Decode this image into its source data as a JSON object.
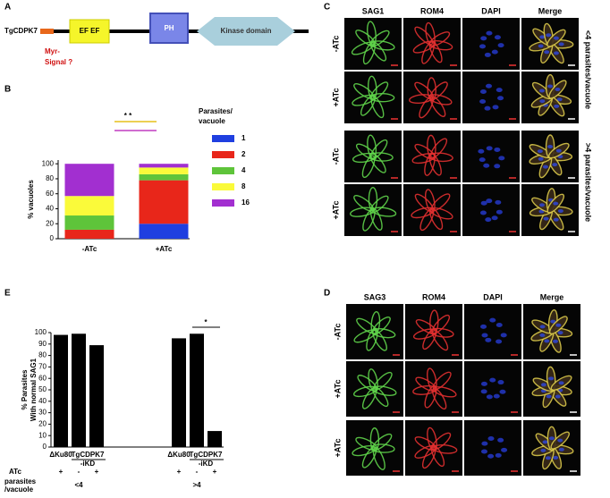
{
  "panel_labels": [
    "A",
    "B",
    "C",
    "D",
    "E"
  ],
  "domain_diagram": {
    "protein": "TgCDPK7",
    "ef": "EF EF",
    "ph": "PH",
    "kinase": "Kinase domain",
    "myr": [
      "Myr-",
      "Signal ?"
    ]
  },
  "chart_data": [
    {
      "type": "stacked-bar",
      "y_label": "% vacuoles",
      "categories": [
        "-ATc",
        "+ATc"
      ],
      "legend_title": [
        "Parasites/",
        "vacuole"
      ],
      "annotation": "* *",
      "ylim": [
        0,
        105
      ],
      "yticks": [
        0,
        20,
        40,
        60,
        80,
        100
      ],
      "series": [
        {
          "name": "1",
          "color": "#1f3fe0",
          "values": [
            0,
            20
          ]
        },
        {
          "name": "2",
          "color": "#e8261a",
          "values": [
            12,
            58
          ]
        },
        {
          "name": "4",
          "color": "#5ec43a",
          "values": [
            19,
            8
          ]
        },
        {
          "name": "8",
          "color": "#fafa3a",
          "values": [
            26,
            9
          ]
        },
        {
          "name": "16",
          "color": "#a22fd0",
          "values": [
            43,
            5
          ]
        }
      ]
    },
    {
      "type": "bar",
      "y_label": [
        "% Parasites",
        "With normal SAG1"
      ],
      "color": "#000000",
      "values": [
        98,
        99,
        89,
        95,
        99,
        14
      ],
      "atc": [
        "+",
        "-",
        "+",
        "+",
        "-",
        "+"
      ],
      "strains": [
        [
          "ΔKu80"
        ],
        [
          "TgCDPK7",
          "-iKD"
        ],
        [
          "ΔKu80"
        ],
        [
          "TgCDPK7",
          "-iKD"
        ]
      ],
      "groups": [
        "<4",
        ">4"
      ],
      "row_labels": [
        "ATc",
        [
          "parasites",
          "/vacuole"
        ]
      ],
      "annotation": "*",
      "ylim": [
        0,
        100
      ],
      "yticks": [
        0,
        10,
        20,
        30,
        40,
        50,
        60,
        70,
        80,
        90,
        100
      ]
    }
  ],
  "microscopy_c": {
    "columns": [
      "SAG1",
      "ROM4",
      "DAPI",
      "Merge"
    ],
    "rows": [
      "-ATc",
      "+ATc",
      "-ATc",
      "+ATc"
    ],
    "side": [
      "<4 parasites/vacuole",
      ">4 parasites/vacuole"
    ]
  },
  "microscopy_d": {
    "columns": [
      "SAG3",
      "ROM4",
      "DAPI",
      "Merge"
    ],
    "rows": [
      "-ATc",
      "+ATc",
      "+ATc"
    ]
  }
}
